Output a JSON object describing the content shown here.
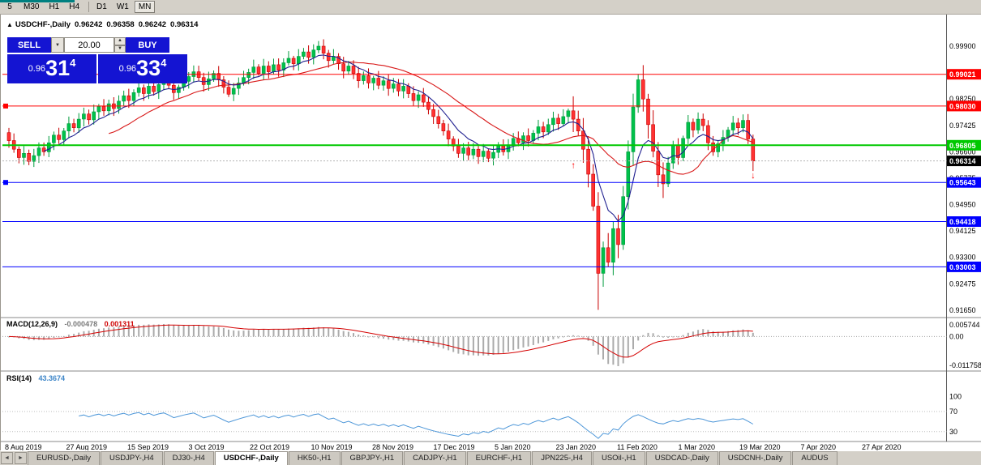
{
  "icons": {
    "collapse": "▲",
    "dropdown": "▼",
    "spin_up": "▲",
    "spin_down": "▼",
    "tab_scroll_left": "◄",
    "tab_scroll_right": "►"
  },
  "toolbar": {
    "timeframes": [
      {
        "label": "5"
      },
      {
        "label": "M30"
      },
      {
        "label": "H1"
      },
      {
        "label": "H4",
        "sep": true
      },
      {
        "label": "D1"
      },
      {
        "label": "W1"
      },
      {
        "label": "MN",
        "active": true
      }
    ]
  },
  "chart": {
    "title": "USDCHF-,Daily",
    "collapse_icon": "▲",
    "ohlc": {
      "open": "0.96242",
      "high": "0.96358",
      "low": "0.96242",
      "close": "0.96314"
    }
  },
  "trade_panel": {
    "sell_label": "SELL",
    "buy_label": "BUY",
    "volume": "20.00",
    "sell_price": {
      "small": "0.96",
      "big": "31",
      "sup": "4"
    },
    "buy_price": {
      "small": "0.96",
      "big": "33",
      "sup": "4"
    }
  },
  "price_axis": {
    "labels": [
      "0.99900",
      "0.99075",
      "0.98250",
      "0.97425",
      "0.96600",
      "0.95775",
      "0.94950",
      "0.94125",
      "0.93300",
      "0.92475",
      "0.91650"
    ]
  },
  "hlines": [
    {
      "price": 0.99021,
      "label": "0.99021",
      "color": "#FF0000",
      "width": 1,
      "handle": false
    },
    {
      "price": 0.9803,
      "label": "0.98030",
      "color": "#FF0000",
      "width": 1,
      "handle": true
    },
    {
      "price": 0.96805,
      "label": "0.96805",
      "color": "#00C800",
      "width": 2,
      "handle": false
    },
    {
      "price": 0.95643,
      "label": "0.95643",
      "color": "#0000FF",
      "width": 1,
      "handle": true
    },
    {
      "price": 0.94418,
      "label": "0.94418",
      "color": "#0000FF",
      "width": 1,
      "handle": false
    },
    {
      "price": 0.93003,
      "label": "0.93003",
      "color": "#0000FF",
      "width": 1,
      "handle": false
    }
  ],
  "current_price": {
    "value": 0.96314,
    "label": "0.96314",
    "color": "#000000"
  },
  "markers": [
    {
      "i": 113,
      "price": 0.9617,
      "glyph": "↑",
      "color": "#FF0000"
    },
    {
      "i": 149,
      "price": 0.9585,
      "glyph": "↓",
      "color": "#FF0000"
    }
  ],
  "chart_data": {
    "type": "candlestick",
    "symbol": "USDCHF-",
    "period": "Daily",
    "first_open": 0.972,
    "last_close": 0.96314,
    "closes": [
      0.9695,
      0.9668,
      0.9642,
      0.9655,
      0.963,
      0.9648,
      0.9672,
      0.966,
      0.9688,
      0.9712,
      0.9698,
      0.9725,
      0.9748,
      0.9735,
      0.9762,
      0.9778,
      0.976,
      0.9785,
      0.9802,
      0.9788,
      0.981,
      0.9795,
      0.9818,
      0.9835,
      0.982,
      0.9845,
      0.986,
      0.9842,
      0.9865,
      0.9848,
      0.987,
      0.9885,
      0.9868,
      0.9845,
      0.9862,
      0.988,
      0.9895,
      0.991,
      0.9892,
      0.987,
      0.9888,
      0.9905,
      0.9885,
      0.9862,
      0.984,
      0.9858,
      0.9875,
      0.9892,
      0.9908,
      0.9925,
      0.9905,
      0.9928,
      0.991,
      0.9932,
      0.9915,
      0.9938,
      0.9952,
      0.9935,
      0.9958,
      0.9972,
      0.9955,
      0.9978,
      0.999,
      0.9968,
      0.9945,
      0.9958,
      0.9935,
      0.9912,
      0.9928,
      0.9905,
      0.9882,
      0.9898,
      0.9875,
      0.989,
      0.9868,
      0.9882,
      0.9858,
      0.9872,
      0.985,
      0.9865,
      0.9842,
      0.982,
      0.9838,
      0.9815,
      0.9792,
      0.977,
      0.9748,
      0.9725,
      0.97,
      0.9678,
      0.9655,
      0.9672,
      0.965,
      0.9668,
      0.9645,
      0.9662,
      0.964,
      0.9658,
      0.9678,
      0.966,
      0.9682,
      0.9702,
      0.9688,
      0.971,
      0.9695,
      0.9718,
      0.9738,
      0.9722,
      0.9745,
      0.9765,
      0.9748,
      0.977,
      0.9788,
      0.9762,
      0.9725,
      0.9668,
      0.959,
      0.949,
      0.928,
      0.936,
      0.9315,
      0.942,
      0.937,
      0.952,
      0.966,
      0.98,
      0.9885,
      0.9825,
      0.9745,
      0.9662,
      0.9588,
      0.956,
      0.9625,
      0.968,
      0.9642,
      0.9702,
      0.9752,
      0.9728,
      0.9762,
      0.9742,
      0.9688,
      0.966,
      0.9685,
      0.9705,
      0.9728,
      0.975,
      0.9735,
      0.9758,
      0.97,
      0.96314
    ],
    "wick_overrides": {
      "118": {
        "low": 0.9166
      },
      "126": {
        "high": 0.9903
      },
      "149": {
        "low": 0.96
      }
    },
    "x_labels": [
      "8 Aug 2019",
      "27 Aug 2019",
      "15 Sep 2019",
      "3 Oct 2019",
      "22 Oct 2019",
      "10 Nov 2019",
      "28 Nov 2019",
      "17 Dec 2019",
      "5 Jan 2020",
      "23 Jan 2020",
      "11 Feb 2020",
      "1 Mar 2020",
      "19 Mar 2020",
      "7 Apr 2020",
      "27 Apr 2020"
    ]
  },
  "macd": {
    "title": "MACD(12,26,9)",
    "value1": "-0.000478",
    "value2": "0.001311",
    "axis": [
      "0.005744",
      "0.00",
      "-0.011758"
    ],
    "params": {
      "fast": 12,
      "slow": 26,
      "signal": 9
    }
  },
  "rsi": {
    "title": "RSI(14)",
    "value": "43.3674",
    "period": 14,
    "levels": [
      70,
      30
    ],
    "axis": [
      "100",
      "70",
      "30"
    ]
  },
  "tabs": {
    "items": [
      {
        "label": "EURUSD-,Daily"
      },
      {
        "label": "USDJPY-,H4"
      },
      {
        "label": "DJ30-,H4"
      },
      {
        "label": "USDCHF-,Daily",
        "active": true
      },
      {
        "label": "HK50-,H1"
      },
      {
        "label": "GBPJPY-,H1"
      },
      {
        "label": "CADJPY-,H1"
      },
      {
        "label": "EURCHF-,H1"
      },
      {
        "label": "JPN225-,H4"
      },
      {
        "label": "USOil-,H1"
      },
      {
        "label": "USDCAD-,Daily"
      },
      {
        "label": "USDCNH-,Daily"
      },
      {
        "label": "AUDUS"
      }
    ]
  }
}
